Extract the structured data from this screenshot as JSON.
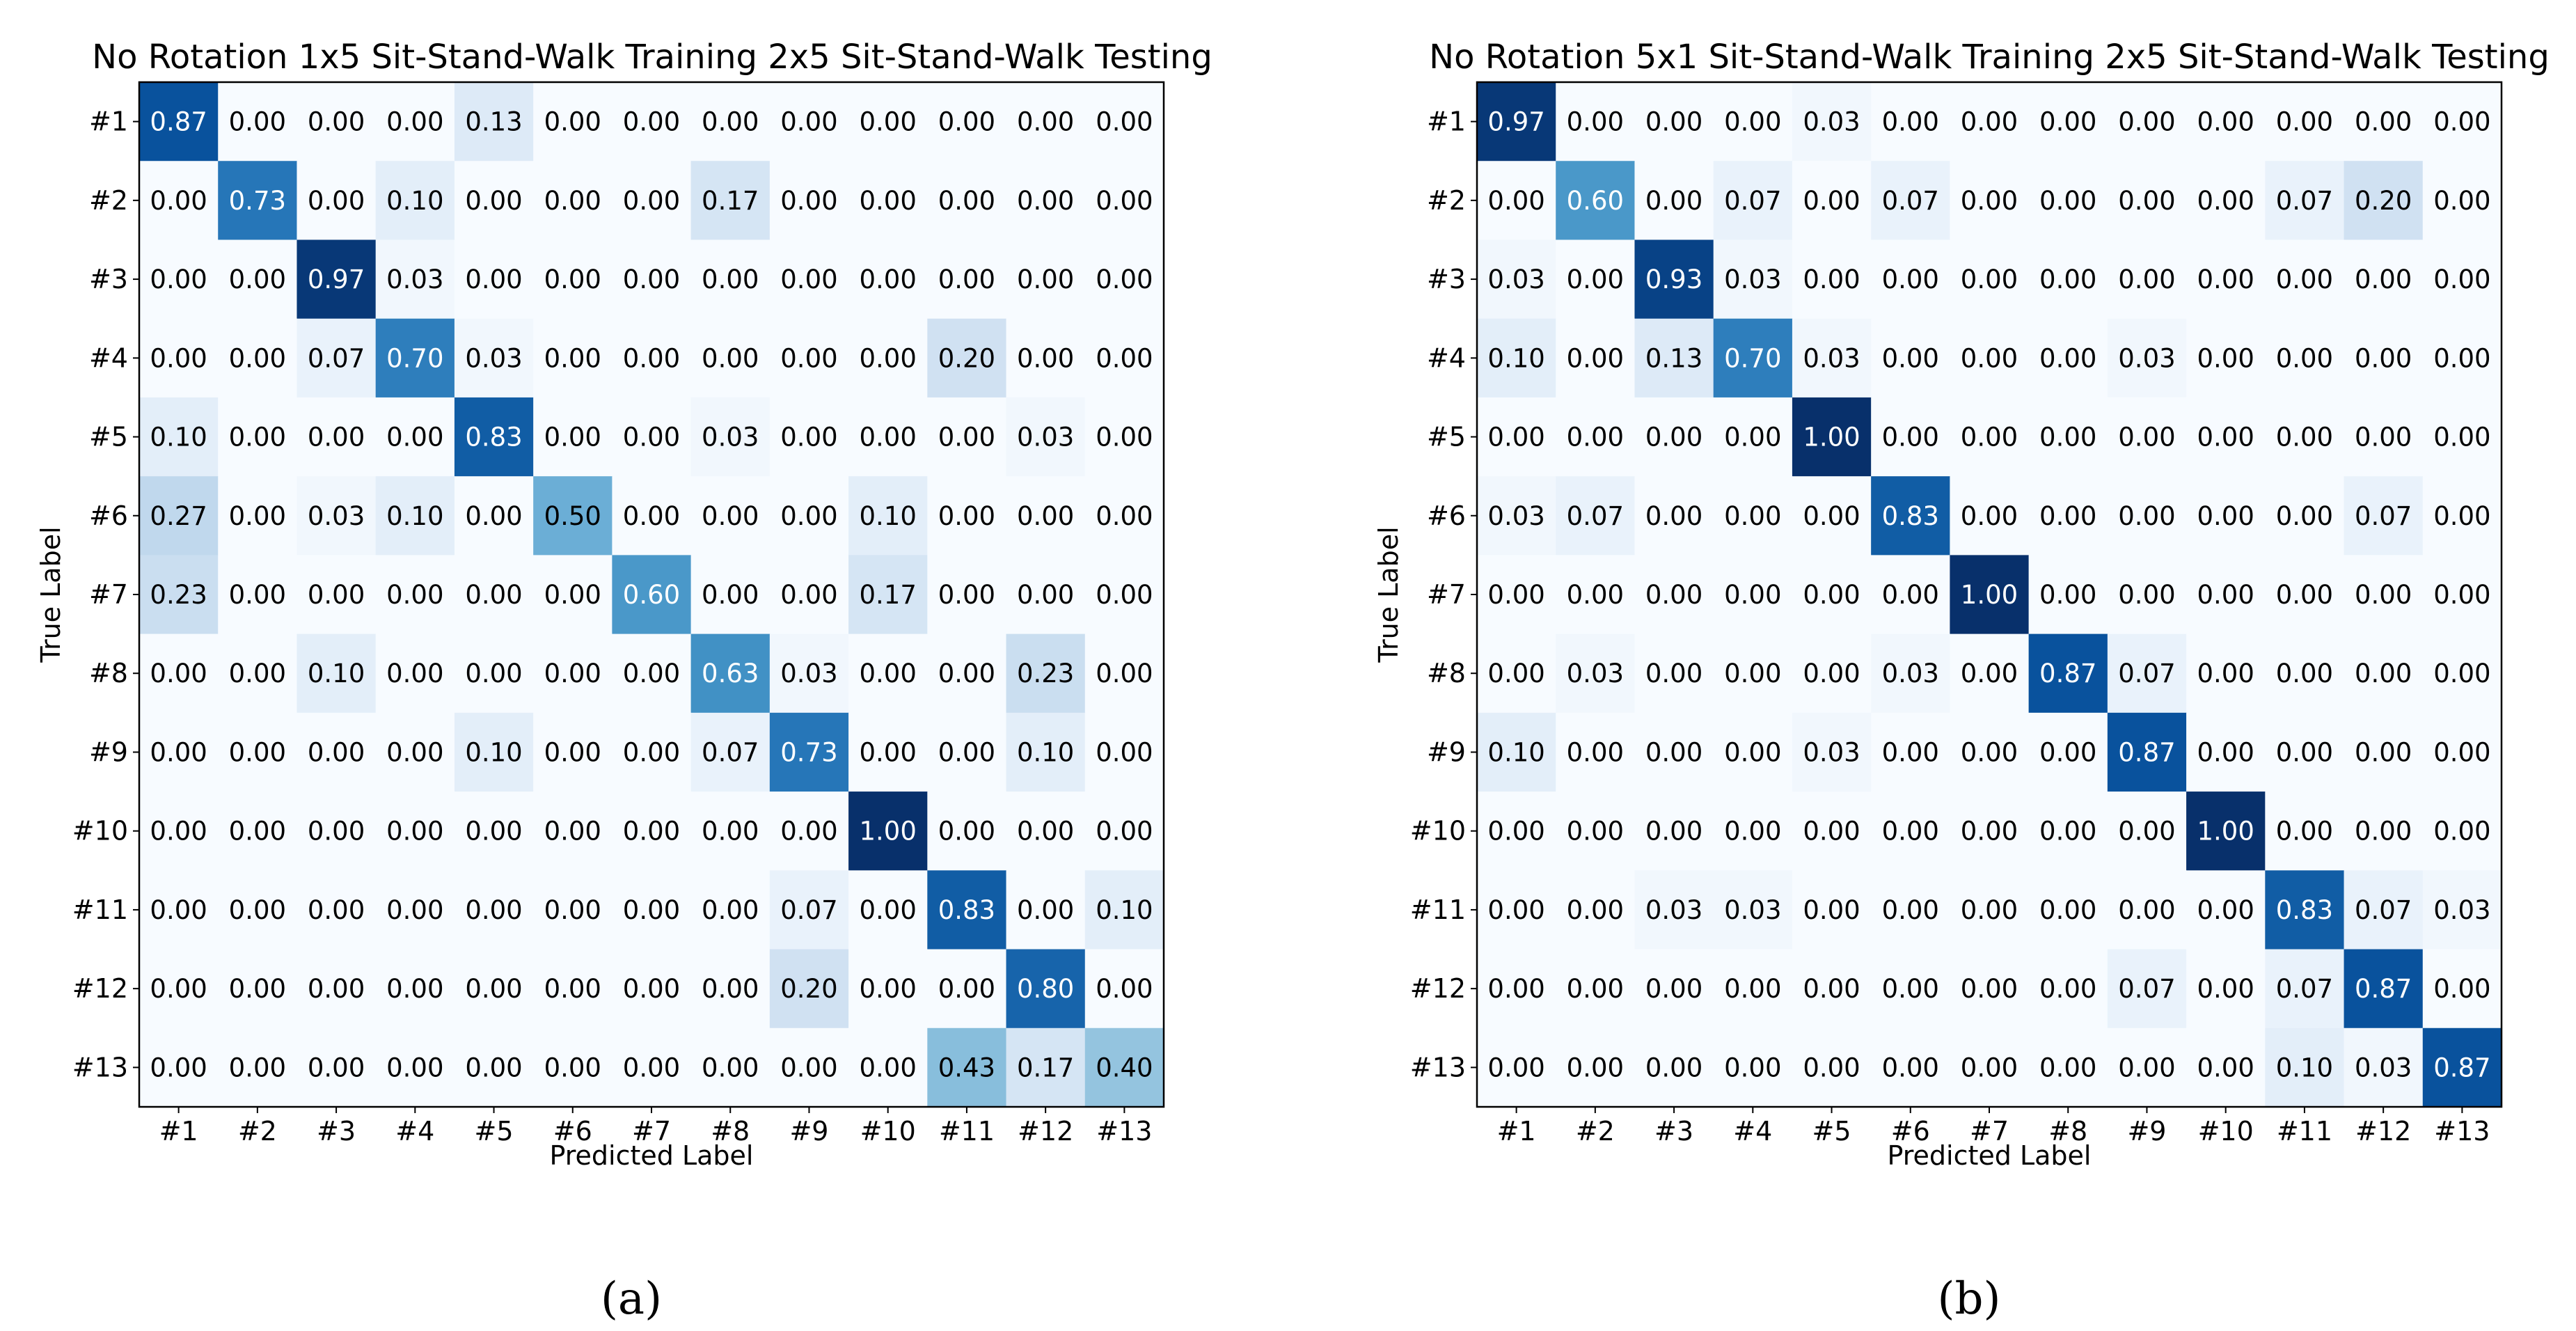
{
  "chart_data": [
    {
      "type": "heatmap",
      "title": "No Rotation 1x5 Sit-Stand-Walk Training 2x5 Sit-Stand-Walk Testing",
      "xlabel": "Predicted Label",
      "ylabel": "True Label",
      "caption": "(a)",
      "x_categories": [
        "#1",
        "#2",
        "#3",
        "#4",
        "#5",
        "#6",
        "#7",
        "#8",
        "#9",
        "#10",
        "#11",
        "#12",
        "#13"
      ],
      "y_categories": [
        "#1",
        "#2",
        "#3",
        "#4",
        "#5",
        "#6",
        "#7",
        "#8",
        "#9",
        "#10",
        "#11",
        "#12",
        "#13"
      ],
      "value_range": [
        0,
        1
      ],
      "colormap": "Blues",
      "values": [
        [
          0.87,
          0.0,
          0.0,
          0.0,
          0.13,
          0.0,
          0.0,
          0.0,
          0.0,
          0.0,
          0.0,
          0.0,
          0.0
        ],
        [
          0.0,
          0.73,
          0.0,
          0.1,
          0.0,
          0.0,
          0.0,
          0.17,
          0.0,
          0.0,
          0.0,
          0.0,
          0.0
        ],
        [
          0.0,
          0.0,
          0.97,
          0.03,
          0.0,
          0.0,
          0.0,
          0.0,
          0.0,
          0.0,
          0.0,
          0.0,
          0.0
        ],
        [
          0.0,
          0.0,
          0.07,
          0.7,
          0.03,
          0.0,
          0.0,
          0.0,
          0.0,
          0.0,
          0.2,
          0.0,
          0.0
        ],
        [
          0.1,
          0.0,
          0.0,
          0.0,
          0.83,
          0.0,
          0.0,
          0.03,
          0.0,
          0.0,
          0.0,
          0.03,
          0.0
        ],
        [
          0.27,
          0.0,
          0.03,
          0.1,
          0.0,
          0.5,
          0.0,
          0.0,
          0.0,
          0.1,
          0.0,
          0.0,
          0.0
        ],
        [
          0.23,
          0.0,
          0.0,
          0.0,
          0.0,
          0.0,
          0.6,
          0.0,
          0.0,
          0.17,
          0.0,
          0.0,
          0.0
        ],
        [
          0.0,
          0.0,
          0.1,
          0.0,
          0.0,
          0.0,
          0.0,
          0.63,
          0.03,
          0.0,
          0.0,
          0.23,
          0.0
        ],
        [
          0.0,
          0.0,
          0.0,
          0.0,
          0.1,
          0.0,
          0.0,
          0.07,
          0.73,
          0.0,
          0.0,
          0.1,
          0.0
        ],
        [
          0.0,
          0.0,
          0.0,
          0.0,
          0.0,
          0.0,
          0.0,
          0.0,
          0.0,
          1.0,
          0.0,
          0.0,
          0.0
        ],
        [
          0.0,
          0.0,
          0.0,
          0.0,
          0.0,
          0.0,
          0.0,
          0.0,
          0.07,
          0.0,
          0.83,
          0.0,
          0.1
        ],
        [
          0.0,
          0.0,
          0.0,
          0.0,
          0.0,
          0.0,
          0.0,
          0.0,
          0.2,
          0.0,
          0.0,
          0.8,
          0.0
        ],
        [
          0.0,
          0.0,
          0.0,
          0.0,
          0.0,
          0.0,
          0.0,
          0.0,
          0.0,
          0.0,
          0.43,
          0.17,
          0.4
        ]
      ]
    },
    {
      "type": "heatmap",
      "title": "No Rotation 5x1 Sit-Stand-Walk Training 2x5 Sit-Stand-Walk Testing",
      "xlabel": "Predicted Label",
      "ylabel": "True Label",
      "caption": "(b)",
      "x_categories": [
        "#1",
        "#2",
        "#3",
        "#4",
        "#5",
        "#6",
        "#7",
        "#8",
        "#9",
        "#10",
        "#11",
        "#12",
        "#13"
      ],
      "y_categories": [
        "#1",
        "#2",
        "#3",
        "#4",
        "#5",
        "#6",
        "#7",
        "#8",
        "#9",
        "#10",
        "#11",
        "#12",
        "#13"
      ],
      "value_range": [
        0,
        1
      ],
      "colormap": "Blues",
      "values": [
        [
          0.97,
          0.0,
          0.0,
          0.0,
          0.03,
          0.0,
          0.0,
          0.0,
          0.0,
          0.0,
          0.0,
          0.0,
          0.0
        ],
        [
          0.0,
          0.6,
          0.0,
          0.07,
          0.0,
          0.07,
          0.0,
          0.0,
          0.0,
          0.0,
          0.07,
          0.2,
          0.0
        ],
        [
          0.03,
          0.0,
          0.93,
          0.03,
          0.0,
          0.0,
          0.0,
          0.0,
          0.0,
          0.0,
          0.0,
          0.0,
          0.0
        ],
        [
          0.1,
          0.0,
          0.13,
          0.7,
          0.03,
          0.0,
          0.0,
          0.0,
          0.03,
          0.0,
          0.0,
          0.0,
          0.0
        ],
        [
          0.0,
          0.0,
          0.0,
          0.0,
          1.0,
          0.0,
          0.0,
          0.0,
          0.0,
          0.0,
          0.0,
          0.0,
          0.0
        ],
        [
          0.03,
          0.07,
          0.0,
          0.0,
          0.0,
          0.83,
          0.0,
          0.0,
          0.0,
          0.0,
          0.0,
          0.07,
          0.0
        ],
        [
          0.0,
          0.0,
          0.0,
          0.0,
          0.0,
          0.0,
          1.0,
          0.0,
          0.0,
          0.0,
          0.0,
          0.0,
          0.0
        ],
        [
          0.0,
          0.03,
          0.0,
          0.0,
          0.0,
          0.03,
          0.0,
          0.87,
          0.07,
          0.0,
          0.0,
          0.0,
          0.0
        ],
        [
          0.1,
          0.0,
          0.0,
          0.0,
          0.03,
          0.0,
          0.0,
          0.0,
          0.87,
          0.0,
          0.0,
          0.0,
          0.0
        ],
        [
          0.0,
          0.0,
          0.0,
          0.0,
          0.0,
          0.0,
          0.0,
          0.0,
          0.0,
          1.0,
          0.0,
          0.0,
          0.0
        ],
        [
          0.0,
          0.0,
          0.03,
          0.03,
          0.0,
          0.0,
          0.0,
          0.0,
          0.0,
          0.0,
          0.83,
          0.07,
          0.03
        ],
        [
          0.0,
          0.0,
          0.0,
          0.0,
          0.0,
          0.0,
          0.0,
          0.0,
          0.07,
          0.0,
          0.07,
          0.87,
          0.0
        ],
        [
          0.0,
          0.0,
          0.0,
          0.0,
          0.0,
          0.0,
          0.0,
          0.0,
          0.0,
          0.0,
          0.1,
          0.03,
          0.87
        ]
      ]
    }
  ]
}
